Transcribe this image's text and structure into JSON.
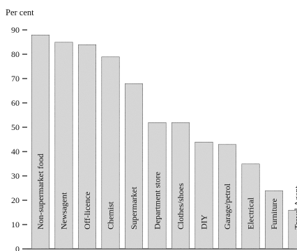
{
  "chart_data": {
    "type": "bar",
    "title": "",
    "xlabel": "",
    "ylabel": "Per cent",
    "ylim": [
      0,
      90
    ],
    "yticks": [
      0,
      10,
      20,
      30,
      40,
      50,
      60,
      70,
      80,
      90
    ],
    "grid": false,
    "legend": "none",
    "bar_fill": "#d9d9d9",
    "categories": [
      "Non-supermarket food",
      "Newsagent",
      "Off-licence",
      "Chemist",
      "Supermarket",
      "Department store",
      "Clothes/shoes",
      "DIY",
      "Garage/petrol",
      "Electrical",
      "Furniture",
      "Travel Agent"
    ],
    "values": [
      88,
      85,
      84,
      79,
      68,
      52,
      52,
      44,
      43,
      35,
      24,
      16
    ]
  }
}
